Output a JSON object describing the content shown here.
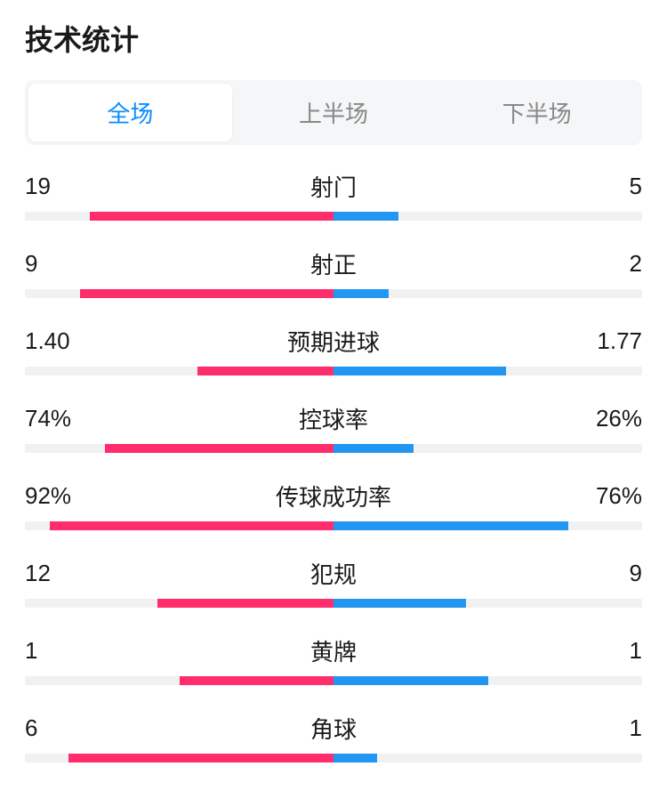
{
  "title": "技术统计",
  "colors": {
    "left": "#ff2d6b",
    "right": "#2196f3",
    "track": "#f0f1f3",
    "active_tab_text": "#0a8cff",
    "inactive_tab_text": "#888888"
  },
  "tabs": [
    {
      "label": "全场",
      "active": true
    },
    {
      "label": "上半场",
      "active": false
    },
    {
      "label": "下半场",
      "active": false
    }
  ],
  "stats": [
    {
      "label": "射门",
      "left_display": "19",
      "right_display": "5",
      "left_pct": 79,
      "right_pct": 21
    },
    {
      "label": "射正",
      "left_display": "9",
      "right_display": "2",
      "left_pct": 82,
      "right_pct": 18
    },
    {
      "label": "预期进球",
      "left_display": "1.40",
      "right_display": "1.77",
      "left_pct": 44,
      "right_pct": 56
    },
    {
      "label": "控球率",
      "left_display": "74%",
      "right_display": "26%",
      "left_pct": 74,
      "right_pct": 26
    },
    {
      "label": "传球成功率",
      "left_display": "92%",
      "right_display": "76%",
      "left_pct": 92,
      "right_pct": 76
    },
    {
      "label": "犯规",
      "left_display": "12",
      "right_display": "9",
      "left_pct": 57,
      "right_pct": 43
    },
    {
      "label": "黄牌",
      "left_display": "1",
      "right_display": "1",
      "left_pct": 50,
      "right_pct": 50
    },
    {
      "label": "角球",
      "left_display": "6",
      "right_display": "1",
      "left_pct": 86,
      "right_pct": 14
    }
  ]
}
